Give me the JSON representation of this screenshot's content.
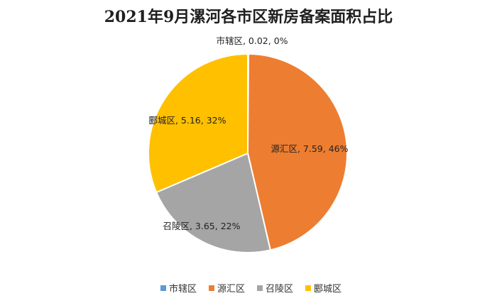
{
  "chart_data": {
    "type": "pie",
    "title": "2021年9月漯河各市区新房备案面积占比",
    "categories": [
      "市辖区",
      "源汇区",
      "召陵区",
      "郾城区"
    ],
    "values": [
      0.02,
      7.59,
      3.65,
      5.16
    ],
    "percent_labels": [
      "0%",
      "46%",
      "22%",
      "32%"
    ],
    "slice_labels": [
      "市辖区, 0.02, 0%",
      "源汇区, 7.59, 46%",
      "召陵区, 3.65, 22%",
      "郾城区, 5.16, 32%"
    ],
    "colors": [
      "#5b9bd5",
      "#ed7d31",
      "#a5a5a5",
      "#ffc000"
    ],
    "legend_position": "bottom"
  }
}
